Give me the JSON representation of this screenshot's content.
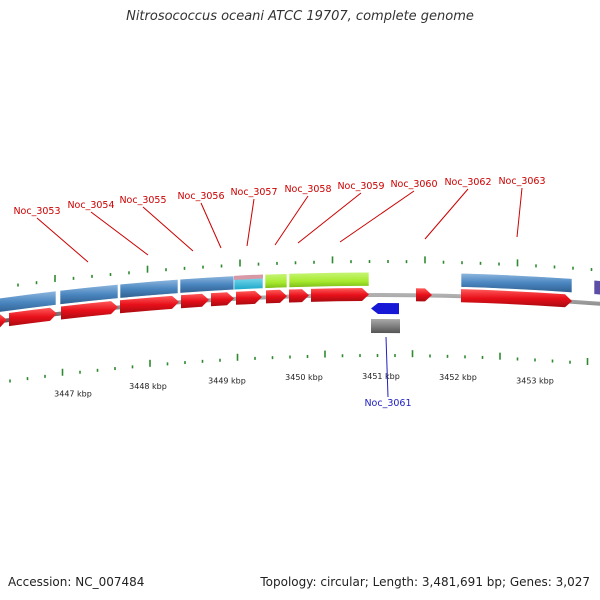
{
  "title": "Nitrosococcus oceani ATCC 19707, complete genome",
  "accession": "Accession: NC_007484",
  "summary": "Topology: circular; Length: 3,481,691 bp; Genes: 3,027",
  "colors": {
    "forward_gene": "#e8101a",
    "reverse_gene": "#1717d6",
    "label_forward": "#cc0000",
    "label_reverse": "#2020c0",
    "feature_blue": "#4a86c0",
    "feature_green": "#a6ea2e",
    "feature_cyan": "#33c8e6",
    "feature_pink": "#d898a6",
    "feature_grey": "#6a6a6a",
    "feature_purple": "#5a4ea6",
    "axis": "#777777",
    "tick": "#2f8a2f"
  },
  "kbp_labels": [
    "3447 kbp",
    "3448 kbp",
    "3449 kbp",
    "3450 kbp",
    "3451 kbp",
    "3452 kbp",
    "3453 kbp"
  ],
  "gene_labels": [
    "Noc_3053",
    "Noc_3054",
    "Noc_3055",
    "Noc_3056",
    "Noc_3057",
    "Noc_3058",
    "Noc_3059",
    "Noc_3060",
    "Noc_3062",
    "Noc_3063"
  ],
  "reverse_gene_label": "Noc_3061"
}
